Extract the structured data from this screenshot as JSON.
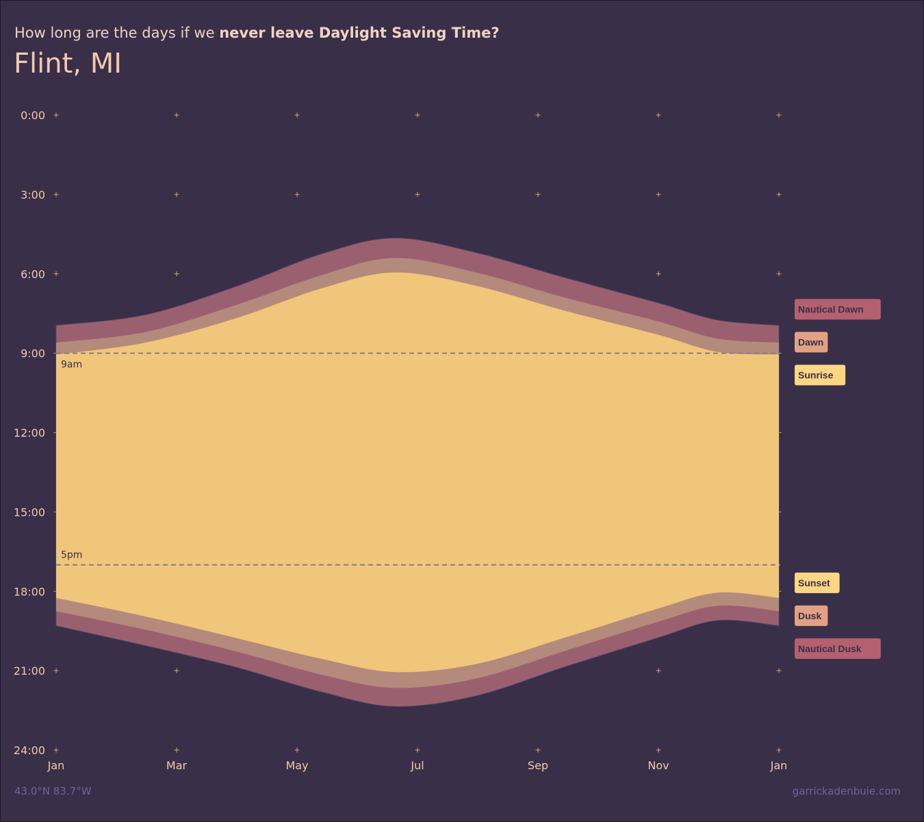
{
  "header": {
    "subtitle_prefix": "How long are the days if we ",
    "subtitle_emphasis": "never leave Daylight Saving Time?",
    "location": "Flint, MI"
  },
  "footer": {
    "coordinates": "43.0°N 83.7°W",
    "credit": "garrickadenbuie.com"
  },
  "colors": {
    "background": "#392f49",
    "nautical": "#9b6070",
    "civil": "#b48a7c",
    "sun": "#efc67a",
    "label_nautical": "#b5606f",
    "label_civil": "#e1a184",
    "label_sun": "#fcd783",
    "label_text": "#3a2f4a",
    "tick_mark": "#d9a85c",
    "axis_text": "#f3c9a8",
    "reference_line": "#8d7e86"
  },
  "chart_data": {
    "type": "area",
    "x": [
      "Jan 1",
      "Feb 15",
      "Apr 1",
      "May 15",
      "Jun 21",
      "Aug 1",
      "Sep 15",
      "Nov 1",
      "Dec 1",
      "Dec 31"
    ],
    "xlim": [
      "Jan",
      "Jan"
    ],
    "x_ticks": [
      "Jan",
      "Mar",
      "May",
      "Jul",
      "Sep",
      "Nov",
      "Jan"
    ],
    "y_ticks": [
      "0:00",
      "3:00",
      "6:00",
      "9:00",
      "12:00",
      "15:00",
      "18:00",
      "21:00",
      "24:00"
    ],
    "ylim": [
      0,
      24
    ],
    "y_reversed": true,
    "series": [
      {
        "name": "Nautical Dawn",
        "values": [
          7.95,
          7.55,
          6.5,
          5.25,
          4.65,
          5.2,
          6.15,
          7.1,
          7.75,
          7.95
        ]
      },
      {
        "name": "Dawn",
        "values": [
          8.6,
          8.2,
          7.2,
          6.05,
          5.4,
          5.95,
          6.9,
          7.8,
          8.45,
          8.6
        ]
      },
      {
        "name": "Sunrise",
        "values": [
          9.05,
          8.6,
          7.7,
          6.55,
          5.95,
          6.45,
          7.4,
          8.3,
          8.95,
          9.05
        ]
      },
      {
        "name": "Sunset",
        "values": [
          18.25,
          18.95,
          19.75,
          20.55,
          21.05,
          20.75,
          19.75,
          18.65,
          18.05,
          18.25
        ]
      },
      {
        "name": "Dusk",
        "values": [
          18.75,
          19.45,
          20.25,
          21.15,
          21.65,
          21.3,
          20.25,
          19.15,
          18.55,
          18.75
        ]
      },
      {
        "name": "Nautical Dusk",
        "values": [
          19.3,
          20.05,
          20.85,
          21.8,
          22.35,
          21.95,
          20.85,
          19.75,
          19.1,
          19.3
        ]
      }
    ],
    "reference_lines": [
      {
        "label": "9am",
        "value": 9
      },
      {
        "label": "5pm",
        "value": 17
      }
    ],
    "grid": "plus-markers",
    "legend": "right, aligned to curve ends"
  }
}
